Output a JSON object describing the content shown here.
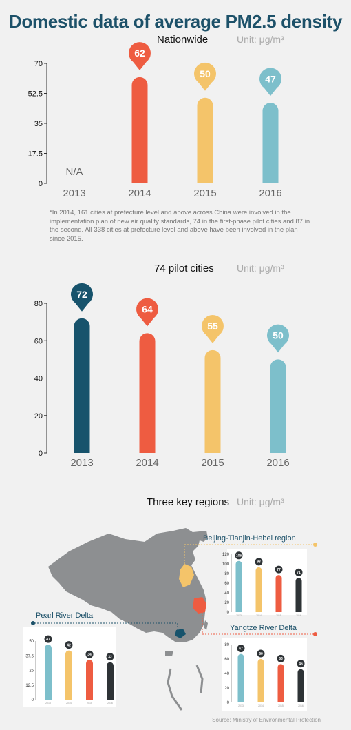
{
  "title": "Domestic data of average PM2.5 density",
  "unit_label": "Unit: μg/m³",
  "note": "*In 2014, 161 cities at prefecture level and above across China were involved in the implementation plan of new air quality standards, 74 in the first-phase pilot cities and 87 in the second. All 338 cities at prefecture level and above have been involved in the plan since 2015.",
  "source": "Source: Ministry of Environmental Protection",
  "colors": {
    "navy": "#17536c",
    "orange": "#ee5c41",
    "yellow": "#f4c46a",
    "blue": "#7dbfcb",
    "charcoal": "#2e3336",
    "map": "#8d8f91",
    "title": "#1d5169",
    "beijing_line": "#f4c46a",
    "pearl_line": "#1d5169",
    "yangtze_line": "#ee5c41"
  },
  "chart_data": [
    {
      "type": "bar",
      "title": "Nationwide",
      "categories": [
        "2013",
        "2014",
        "2015",
        "2016"
      ],
      "values": [
        null,
        62,
        50,
        47
      ],
      "value_labels": [
        "",
        "62",
        "50",
        "47"
      ],
      "missing_label": "N/A",
      "colors": [
        "#17536c",
        "#ee5c41",
        "#f4c46a",
        "#7dbfcb"
      ],
      "yticks": [
        "0",
        "17.5",
        "35",
        "52.5",
        "70"
      ],
      "ylim": [
        0,
        70
      ]
    },
    {
      "type": "bar",
      "title": "74 pilot cities",
      "categories": [
        "2013",
        "2014",
        "2015",
        "2016"
      ],
      "values": [
        72,
        64,
        55,
        50
      ],
      "value_labels": [
        "72",
        "64",
        "55",
        "50"
      ],
      "colors": [
        "#17536c",
        "#ee5c41",
        "#f4c46a",
        "#7dbfcb"
      ],
      "yticks": [
        "0",
        "20",
        "40",
        "60",
        "80"
      ],
      "ylim": [
        0,
        80
      ]
    },
    {
      "type": "bar",
      "title": "Three key regions",
      "subtitle": "Beijing-Tianjin-Hebei region",
      "categories": [
        "2013",
        "2014",
        "2015",
        "2016"
      ],
      "values": [
        106,
        93,
        77,
        71
      ],
      "value_labels": [
        "106",
        "93",
        "77",
        "71"
      ],
      "colors": [
        "#7dbfcb",
        "#f4c46a",
        "#ee5c41",
        "#2e3336"
      ],
      "yticks": [
        "0",
        "20",
        "40",
        "60",
        "80",
        "100",
        "120"
      ],
      "ylim": [
        0,
        120
      ]
    },
    {
      "type": "bar",
      "subtitle": "Pearl River Delta",
      "categories": [
        "2013",
        "2014",
        "2015",
        "2016"
      ],
      "values": [
        47,
        42,
        34,
        32
      ],
      "value_labels": [
        "47",
        "42",
        "34",
        "32"
      ],
      "colors": [
        "#7dbfcb",
        "#f4c46a",
        "#ee5c41",
        "#2e3336"
      ],
      "yticks": [
        "0",
        "12.5",
        "25",
        "37.5",
        "50"
      ],
      "ylim": [
        0,
        50
      ]
    },
    {
      "type": "bar",
      "subtitle": "Yangtze River Delta",
      "categories": [
        "2013",
        "2014",
        "2015",
        "2016"
      ],
      "values": [
        67,
        60,
        53,
        46
      ],
      "value_labels": [
        "67",
        "60",
        "53",
        "46"
      ],
      "colors": [
        "#7dbfcb",
        "#f4c46a",
        "#ee5c41",
        "#2e3336"
      ],
      "yticks": [
        "0",
        "20",
        "40",
        "60",
        "80"
      ],
      "ylim": [
        0,
        80
      ]
    }
  ]
}
